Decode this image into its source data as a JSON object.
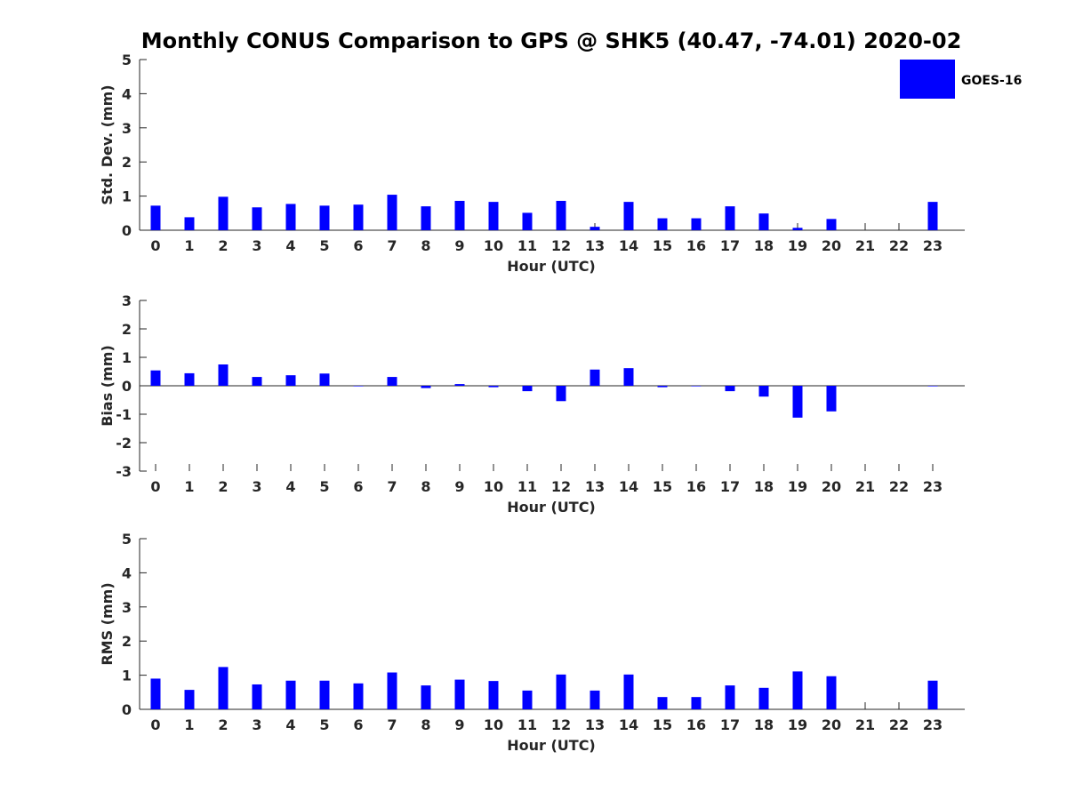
{
  "colors": {
    "series": "#0000ff",
    "axis": "#262626",
    "background": "#ffffff"
  },
  "chart_data": {
    "type": "bar",
    "title": "Monthly CONUS Comparison to GPS @ SHK5 (40.47, -74.01) 2020-02",
    "legend": {
      "entries": [
        "GOES-16"
      ],
      "placement": "top-right"
    },
    "categories": [
      "0",
      "1",
      "2",
      "3",
      "4",
      "5",
      "6",
      "7",
      "8",
      "9",
      "10",
      "11",
      "12",
      "13",
      "14",
      "15",
      "16",
      "17",
      "18",
      "19",
      "20",
      "21",
      "22",
      "23"
    ],
    "panels": [
      {
        "id": "std",
        "ylabel": "Std. Dev. (mm)",
        "xlabel": "Hour (UTC)",
        "ylim": [
          0,
          5
        ],
        "yticks": [
          0,
          1,
          2,
          3,
          4,
          5
        ],
        "series": [
          {
            "name": "GOES-16",
            "values": [
              0.72,
              0.38,
              0.98,
              0.67,
              0.77,
              0.72,
              0.75,
              1.04,
              0.7,
              0.86,
              0.83,
              0.51,
              0.86,
              0.1,
              0.83,
              0.35,
              0.35,
              0.7,
              0.49,
              0.07,
              0.33,
              null,
              null,
              0.83
            ]
          }
        ]
      },
      {
        "id": "bias",
        "ylabel": "Bias (mm)",
        "xlabel": "Hour (UTC)",
        "ylim": [
          -3,
          3
        ],
        "yticks": [
          -3,
          -2,
          -1,
          0,
          1,
          2,
          3
        ],
        "series": [
          {
            "name": "GOES-16",
            "values": [
              0.54,
              0.44,
              0.75,
              0.31,
              0.37,
              0.43,
              0.0,
              0.31,
              -0.08,
              0.06,
              -0.05,
              -0.19,
              -0.54,
              0.57,
              0.62,
              -0.05,
              0.0,
              -0.19,
              -0.38,
              -1.12,
              -0.9,
              null,
              null,
              0.0
            ]
          }
        ]
      },
      {
        "id": "rms",
        "ylabel": "RMS (mm)",
        "xlabel": "Hour (UTC)",
        "ylim": [
          0,
          5
        ],
        "yticks": [
          0,
          1,
          2,
          3,
          4,
          5
        ],
        "series": [
          {
            "name": "GOES-16",
            "values": [
              0.9,
              0.57,
              1.24,
              0.73,
              0.84,
              0.84,
              0.76,
              1.08,
              0.7,
              0.87,
              0.83,
              0.55,
              1.02,
              0.55,
              1.02,
              0.36,
              0.36,
              0.7,
              0.63,
              1.11,
              0.97,
              null,
              null,
              0.84
            ]
          }
        ]
      }
    ]
  }
}
